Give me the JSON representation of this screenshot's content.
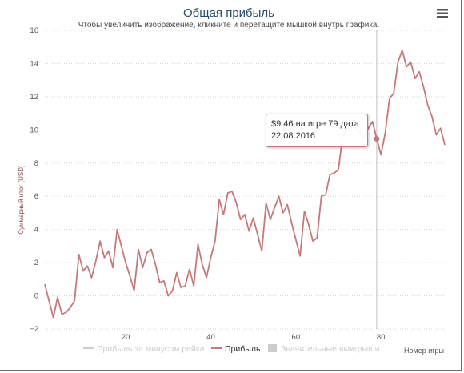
{
  "chart_data": {
    "type": "line",
    "title": "Общая прибыль",
    "subtitle": "Чтобы увеличить изображение, кликните и перетащите мышкой внутрь графика.",
    "xlabel": "Номер игры",
    "ylabel": "Суммарный итог (USD)",
    "xlim": [
      1,
      95
    ],
    "ylim": [
      -2,
      16
    ],
    "x_ticks": [
      "20",
      "40",
      "60",
      "80"
    ],
    "y_ticks": [
      "16",
      "14",
      "12",
      "10",
      "8",
      "6",
      "4",
      "2",
      "0",
      "−2"
    ],
    "grid": true,
    "legend_position": "bottom",
    "legend": [
      {
        "label": "Прибыль за минусом рейка",
        "color": "#cccccc",
        "marker": "line",
        "hidden": true
      },
      {
        "label": "Прибыль",
        "color": "#c47a7a",
        "marker": "line",
        "hidden": false
      },
      {
        "label": "Значительные выигрыши",
        "color": "#cccccc",
        "marker": "box",
        "hidden": true
      }
    ],
    "series": [
      {
        "name": "Прибыль",
        "color": "#c47a7a",
        "points": [
          [
            1,
            0.7
          ],
          [
            2,
            -0.3
          ],
          [
            3,
            -1.3
          ],
          [
            4,
            -0.1
          ],
          [
            5,
            -1.1
          ],
          [
            6,
            -1.0
          ],
          [
            7,
            -0.7
          ],
          [
            8,
            -0.3
          ],
          [
            9,
            2.5
          ],
          [
            10,
            1.5
          ],
          [
            11,
            1.8
          ],
          [
            12,
            1.1
          ],
          [
            13,
            2.1
          ],
          [
            14,
            3.3
          ],
          [
            15,
            2.3
          ],
          [
            16,
            2.7
          ],
          [
            17,
            1.7
          ],
          [
            18,
            4.0
          ],
          [
            19,
            3.0
          ],
          [
            20,
            2.0
          ],
          [
            21,
            1.2
          ],
          [
            22,
            0.3
          ],
          [
            23,
            2.8
          ],
          [
            24,
            1.7
          ],
          [
            25,
            2.6
          ],
          [
            26,
            2.8
          ],
          [
            27,
            1.9
          ],
          [
            28,
            0.8
          ],
          [
            29,
            0.9
          ],
          [
            30,
            0.0
          ],
          [
            31,
            0.3
          ],
          [
            32,
            1.4
          ],
          [
            33,
            0.5
          ],
          [
            34,
            0.6
          ],
          [
            35,
            1.6
          ],
          [
            36,
            0.6
          ],
          [
            37,
            3.1
          ],
          [
            38,
            1.9
          ],
          [
            39,
            1.1
          ],
          [
            40,
            2.3
          ],
          [
            41,
            3.3
          ],
          [
            42,
            5.8
          ],
          [
            43,
            4.9
          ],
          [
            44,
            6.2
          ],
          [
            45,
            6.3
          ],
          [
            46,
            5.6
          ],
          [
            47,
            4.6
          ],
          [
            48,
            4.9
          ],
          [
            49,
            3.9
          ],
          [
            50,
            4.7
          ],
          [
            51,
            3.7
          ],
          [
            52,
            2.7
          ],
          [
            53,
            5.6
          ],
          [
            54,
            4.6
          ],
          [
            55,
            5.3
          ],
          [
            56,
            6.0
          ],
          [
            57,
            5.0
          ],
          [
            58,
            5.5
          ],
          [
            59,
            4.4
          ],
          [
            60,
            3.4
          ],
          [
            61,
            2.4
          ],
          [
            62,
            5.1
          ],
          [
            63,
            4.3
          ],
          [
            64,
            3.3
          ],
          [
            65,
            3.5
          ],
          [
            66,
            6.0
          ],
          [
            67,
            6.1
          ],
          [
            68,
            7.3
          ],
          [
            69,
            7.4
          ],
          [
            70,
            7.6
          ],
          [
            71,
            9.6
          ],
          [
            72,
            10.0
          ],
          [
            73,
            10.3
          ],
          [
            74,
            10.1
          ],
          [
            75,
            9.9
          ],
          [
            76,
            9.5
          ],
          [
            77,
            10.1
          ],
          [
            78,
            10.5
          ],
          [
            79,
            9.46
          ],
          [
            80,
            8.5
          ],
          [
            81,
            9.8
          ],
          [
            82,
            11.9
          ],
          [
            83,
            12.2
          ],
          [
            84,
            14.1
          ],
          [
            85,
            14.8
          ],
          [
            86,
            13.8
          ],
          [
            87,
            14.1
          ],
          [
            88,
            13.1
          ],
          [
            89,
            13.5
          ],
          [
            90,
            12.6
          ],
          [
            91,
            11.5
          ],
          [
            92,
            10.8
          ],
          [
            93,
            9.7
          ],
          [
            94,
            10.1
          ],
          [
            95,
            9.1
          ]
        ]
      }
    ],
    "tooltip": {
      "x": 79,
      "y": 9.46,
      "line1": "$9.46 на игре 79 дата",
      "line2": "22.08.2016"
    }
  }
}
